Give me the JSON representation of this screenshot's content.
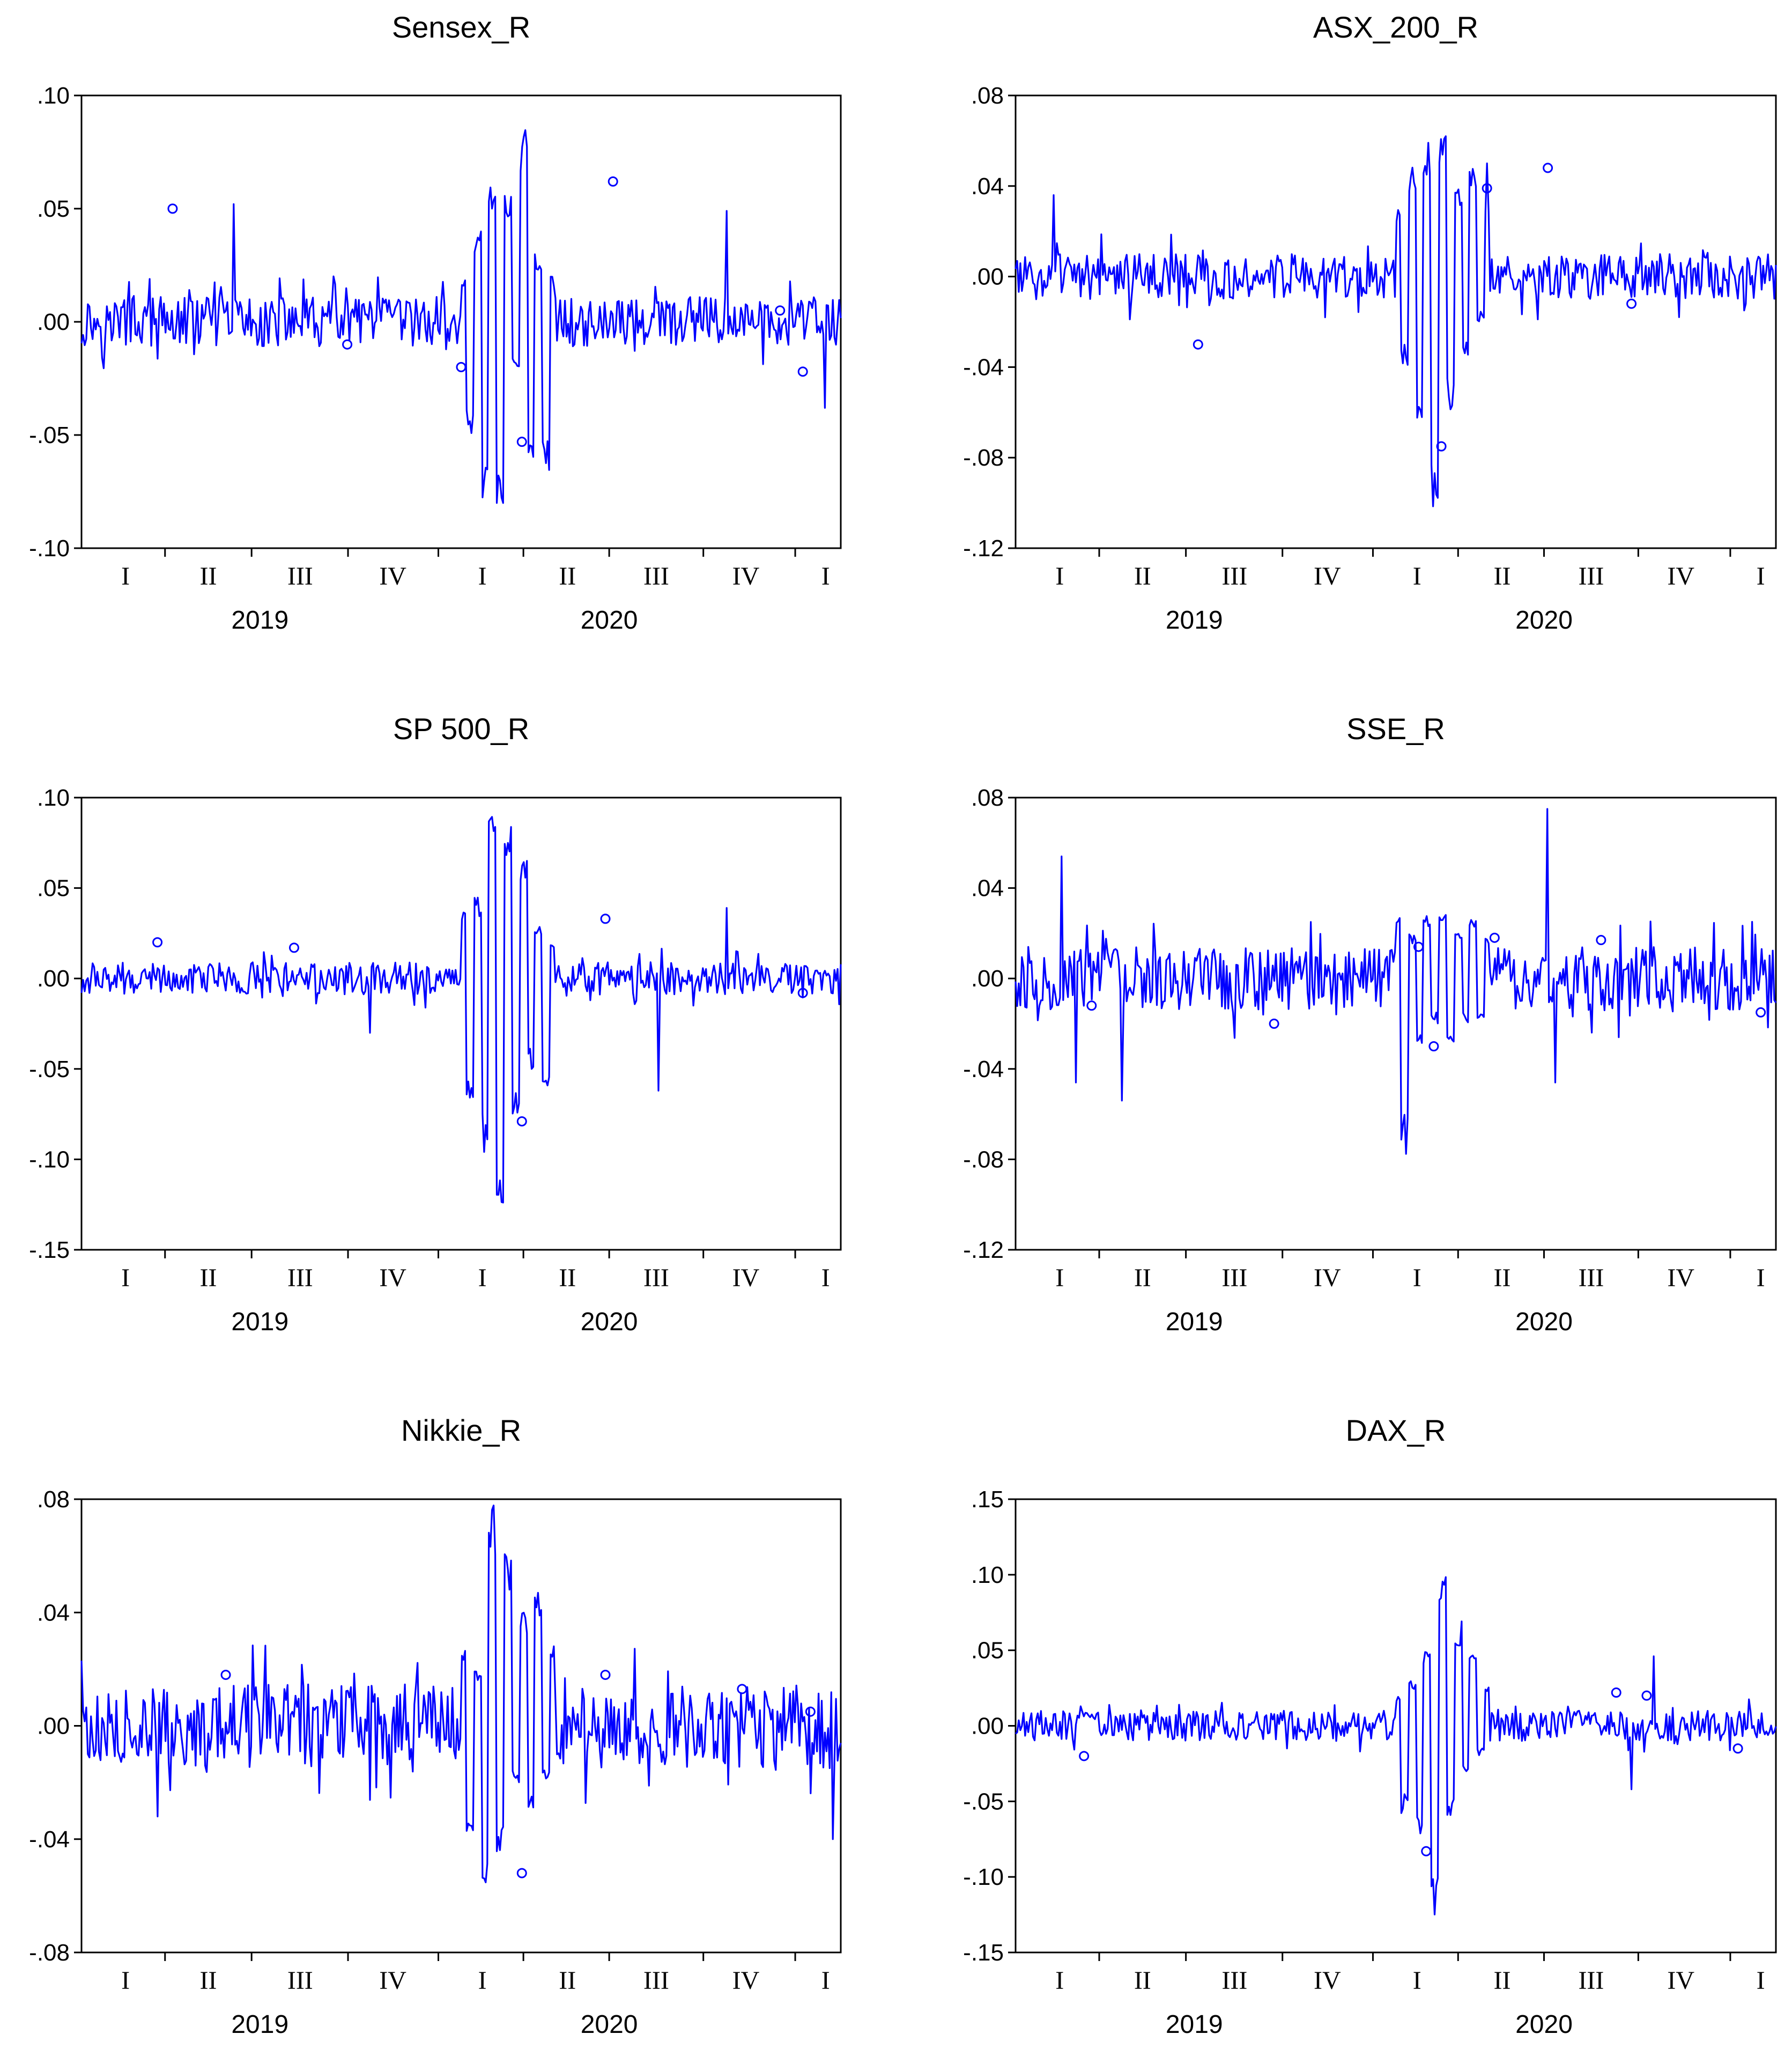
{
  "chart_data": [
    {
      "type": "line",
      "title": "Sensex_R",
      "yticks": [
        ".10",
        ".05",
        ".00",
        "-.05",
        "-.10"
      ],
      "ytick_values": [
        0.1,
        0.05,
        0.0,
        -0.05,
        -0.1
      ],
      "ylim": [
        -0.1,
        0.1
      ],
      "quarter_labels": [
        "I",
        "II",
        "III",
        "IV",
        "I",
        "II",
        "III",
        "IV",
        "I"
      ],
      "years": [
        "2019",
        "2020"
      ],
      "series": [
        {
          "color": "#0000ff",
          "amplitude": 0.011,
          "min": -0.085,
          "max": 0.086
        }
      ],
      "crisis_values": [
        0.02,
        -0.05,
        0.04,
        -0.085,
        0.066,
        -0.085,
        0.06,
        -0.02,
        0.086,
        -0.06,
        0.03,
        -0.07,
        0.02
      ],
      "highlight_points": [
        {
          "x": 0.12,
          "y": 0.05
        },
        {
          "x": 0.35,
          "y": -0.01
        },
        {
          "x": 0.5,
          "y": -0.02
        },
        {
          "x": 0.7,
          "y": 0.062
        },
        {
          "x": 0.92,
          "y": 0.005
        },
        {
          "x": 0.58,
          "y": -0.053
        },
        {
          "x": 0.95,
          "y": -0.022
        }
      ],
      "spikes": [
        {
          "x": 0.2,
          "y": 0.052
        },
        {
          "x": 0.85,
          "y": 0.049
        },
        {
          "x": 0.98,
          "y": -0.038
        }
      ]
    },
    {
      "type": "line",
      "title": "ASX_200_R",
      "yticks": [
        ".08",
        ".04",
        ".00",
        "-.04",
        "-.08",
        "-.12"
      ],
      "ytick_values": [
        0.08,
        0.04,
        0.0,
        -0.04,
        -0.08,
        -0.12
      ],
      "ylim": [
        -0.12,
        0.08
      ],
      "quarter_labels": [
        "I",
        "II",
        "III",
        "IV",
        "I",
        "II",
        "III",
        "IV",
        "I"
      ],
      "years": [
        "2019",
        "2020"
      ],
      "series": [
        {
          "color": "#0000ff",
          "amplitude": 0.01,
          "min": -0.102,
          "max": 0.067
        }
      ],
      "crisis_values": [
        0.03,
        -0.04,
        0.05,
        -0.075,
        0.06,
        -0.102,
        0.067,
        -0.06,
        0.04,
        -0.035,
        0.05,
        -0.02,
        0.03
      ],
      "highlight_points": [
        {
          "x": 0.24,
          "y": -0.03
        },
        {
          "x": 0.62,
          "y": 0.039
        },
        {
          "x": 0.7,
          "y": 0.048
        },
        {
          "x": 0.56,
          "y": -0.075
        },
        {
          "x": 0.81,
          "y": -0.012
        }
      ],
      "spikes": [
        {
          "x": 0.05,
          "y": 0.036
        },
        {
          "x": 0.62,
          "y": 0.05
        }
      ]
    },
    {
      "type": "line",
      "title": "SP 500_R",
      "yticks": [
        ".10",
        ".05",
        ".00",
        "-.05",
        "-.10",
        "-.15"
      ],
      "ytick_values": [
        0.1,
        0.05,
        0.0,
        -0.05,
        -0.1,
        -0.15
      ],
      "ylim": [
        -0.15,
        0.1
      ],
      "quarter_labels": [
        "I",
        "II",
        "III",
        "IV",
        "I",
        "II",
        "III",
        "IV",
        "I"
      ],
      "years": [
        "2019",
        "2020"
      ],
      "series": [
        {
          "color": "#0000ff",
          "amplitude": 0.009,
          "min": -0.127,
          "max": 0.09
        }
      ],
      "crisis_values": [
        0.04,
        -0.075,
        0.045,
        -0.1,
        0.09,
        -0.127,
        0.09,
        -0.08,
        0.066,
        -0.05,
        0.03,
        -0.062,
        0.02
      ],
      "highlight_points": [
        {
          "x": 0.1,
          "y": 0.02
        },
        {
          "x": 0.28,
          "y": 0.017
        },
        {
          "x": 0.69,
          "y": 0.033
        },
        {
          "x": 0.58,
          "y": -0.079
        },
        {
          "x": 0.95,
          "y": -0.008
        }
      ],
      "spikes": [
        {
          "x": 0.38,
          "y": -0.03
        },
        {
          "x": 0.76,
          "y": -0.062
        },
        {
          "x": 0.85,
          "y": 0.039
        }
      ]
    },
    {
      "type": "line",
      "title": "SSE_R",
      "yticks": [
        ".08",
        ".04",
        ".00",
        "-.04",
        "-.08",
        "-.12"
      ],
      "ytick_values": [
        0.08,
        0.04,
        0.0,
        -0.04,
        -0.08,
        -0.12
      ],
      "ylim": [
        -0.12,
        0.08
      ],
      "quarter_labels": [
        "I",
        "II",
        "III",
        "IV",
        "I",
        "II",
        "III",
        "IV",
        "I"
      ],
      "years": [
        "2019",
        "2020"
      ],
      "series": [
        {
          "color": "#0000ff",
          "amplitude": 0.014,
          "min": -0.08,
          "max": 0.075
        }
      ],
      "crisis_values": [
        0.03,
        -0.08,
        0.02,
        -0.03,
        0.028,
        -0.02,
        0.03,
        -0.03,
        0.02,
        -0.02,
        0.03,
        -0.02,
        0.02
      ],
      "highlight_points": [
        {
          "x": 0.1,
          "y": -0.012
        },
        {
          "x": 0.34,
          "y": -0.02
        },
        {
          "x": 0.53,
          "y": 0.014
        },
        {
          "x": 0.55,
          "y": -0.03
        },
        {
          "x": 0.63,
          "y": 0.018
        },
        {
          "x": 0.77,
          "y": 0.017
        },
        {
          "x": 0.98,
          "y": -0.015
        }
      ],
      "spikes": [
        {
          "x": 0.06,
          "y": 0.054
        },
        {
          "x": 0.08,
          "y": -0.046
        },
        {
          "x": 0.14,
          "y": -0.054
        },
        {
          "x": 0.7,
          "y": 0.075
        },
        {
          "x": 0.71,
          "y": -0.046
        }
      ]
    },
    {
      "type": "line",
      "title": "Nikkie_R",
      "yticks": [
        ".08",
        ".04",
        ".00",
        "-.04",
        "-.08"
      ],
      "ytick_values": [
        0.08,
        0.04,
        0.0,
        -0.04,
        -0.08
      ],
      "ylim": [
        -0.08,
        0.08
      ],
      "quarter_labels": [
        "I",
        "II",
        "III",
        "IV",
        "I",
        "II",
        "III",
        "IV",
        "I"
      ],
      "years": [
        "2019",
        "2020"
      ],
      "series": [
        {
          "color": "#0000ff",
          "amplitude": 0.015,
          "min": -0.064,
          "max": 0.078
        }
      ],
      "crisis_values": [
        0.03,
        -0.04,
        0.02,
        -0.064,
        0.078,
        -0.047,
        0.062,
        -0.02,
        0.04,
        -0.03,
        0.047,
        -0.02,
        0.03
      ],
      "highlight_points": [
        {
          "x": 0.19,
          "y": 0.018
        },
        {
          "x": 0.58,
          "y": -0.052
        },
        {
          "x": 0.69,
          "y": 0.018
        },
        {
          "x": 0.87,
          "y": 0.013
        },
        {
          "x": 0.96,
          "y": 0.005
        }
      ],
      "spikes": [
        {
          "x": 0.1,
          "y": -0.032
        },
        {
          "x": 0.0,
          "y": 0.023
        },
        {
          "x": 0.99,
          "y": -0.04
        }
      ]
    },
    {
      "type": "line",
      "title": "DAX_R",
      "yticks": [
        ".15",
        ".10",
        ".05",
        ".00",
        "-.05",
        "-.10",
        "-.15"
      ],
      "ytick_values": [
        0.15,
        0.1,
        0.05,
        0.0,
        -0.05,
        -0.1,
        -0.15
      ],
      "ylim": [
        -0.15,
        0.15
      ],
      "quarter_labels": [
        "I",
        "II",
        "III",
        "IV",
        "I",
        "II",
        "III",
        "IV",
        "I"
      ],
      "years": [
        "2019",
        "2020"
      ],
      "series": [
        {
          "color": "#0000ff",
          "amplitude": 0.01,
          "min": -0.13,
          "max": 0.104
        }
      ],
      "crisis_values": [
        0.02,
        -0.06,
        0.03,
        -0.08,
        0.05,
        -0.13,
        0.104,
        -0.06,
        0.07,
        -0.03,
        0.05,
        -0.02,
        0.03
      ],
      "highlight_points": [
        {
          "x": 0.09,
          "y": -0.02
        },
        {
          "x": 0.79,
          "y": 0.022
        },
        {
          "x": 0.83,
          "y": 0.02
        },
        {
          "x": 0.54,
          "y": -0.083
        },
        {
          "x": 0.95,
          "y": -0.015
        }
      ],
      "spikes": [
        {
          "x": 0.84,
          "y": 0.046
        },
        {
          "x": 0.81,
          "y": -0.042
        }
      ]
    }
  ]
}
